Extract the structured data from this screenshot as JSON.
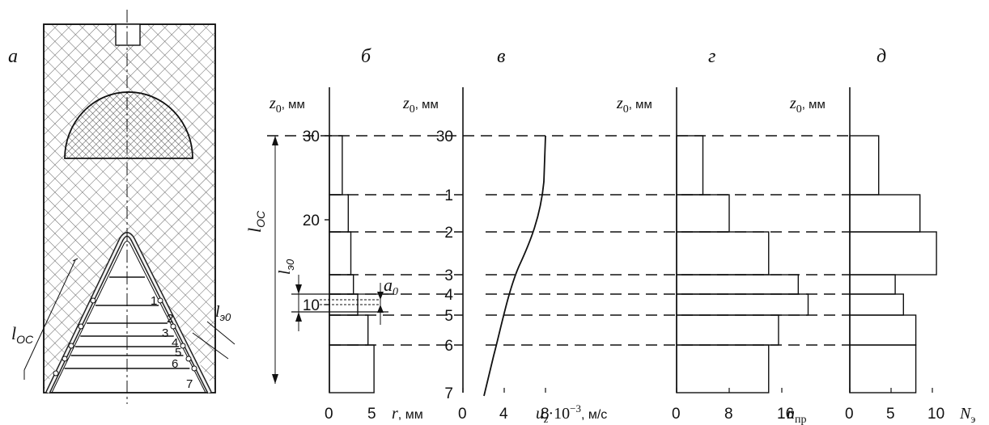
{
  "panel_a": {
    "label": "а",
    "annotations": [
      "1",
      "2",
      "3",
      "4",
      "5",
      "6",
      "7"
    ],
    "l_oc": "l",
    "l_oc_sub": "ОС",
    "l_e0": "l",
    "l_e0_sub": "э0"
  },
  "panel_b": {
    "label": "б",
    "z_label": "z",
    "z_sub": "0",
    "z_unit": ", мм",
    "z_ticks": [
      "30",
      "20",
      "10"
    ],
    "x_ticks": [
      "0",
      "5"
    ],
    "x_label": "r",
    "x_unit": ", мм",
    "l_oc": "l",
    "l_oc_sub": "ОС",
    "l_e0": "l",
    "l_e0_sub": "э0",
    "a0": "a",
    "a0_sub": "0",
    "widths_mm": [
      1.5,
      2.2,
      2.5,
      2.8,
      3.3,
      4.5,
      5.2
    ]
  },
  "panel_v": {
    "label": "в",
    "z_label": "z",
    "z_sub": "0",
    "z_unit": ", мм",
    "section_labels": [
      "1",
      "2",
      "3",
      "4",
      "5",
      "6",
      "7"
    ],
    "x_ticks": [
      "0",
      "4",
      "8"
    ],
    "x_label": "u",
    "x_sub": "z",
    "x_mult": "·10",
    "x_sup": "−3",
    "x_unit": ", м/с"
  },
  "panel_g": {
    "label": "г",
    "z_label": "z",
    "z_sub": "0",
    "z_unit": ", мм",
    "x_ticks": [
      "0",
      "8",
      "16"
    ],
    "x_label": "n",
    "x_sub": "пр",
    "values": [
      4,
      8,
      14,
      18.5,
      20,
      15.5,
      14
    ]
  },
  "panel_d": {
    "label": "д",
    "z_label": "z",
    "z_sub": "0",
    "z_unit": ", мм",
    "x_ticks": [
      "0",
      "5",
      "10"
    ],
    "x_label": "N",
    "x_sub": "э",
    "values": [
      3.5,
      8.5,
      10.5,
      5.5,
      6.5,
      8,
      8
    ]
  }
}
